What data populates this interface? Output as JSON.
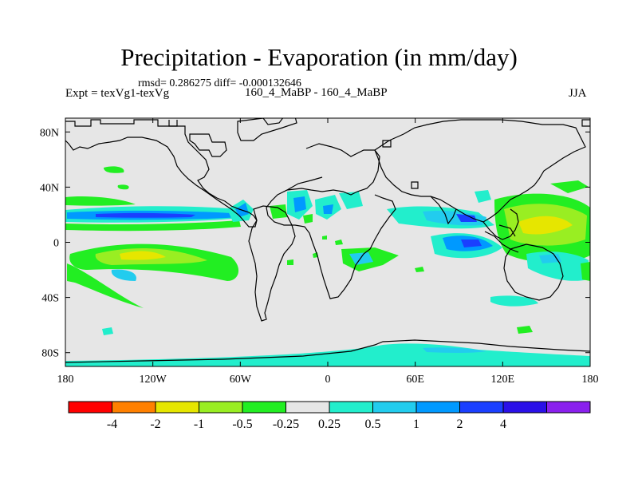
{
  "chart_data": {
    "type": "heatmap",
    "title": "Precipitation - Evaporation (in mm/day)",
    "stats": "rmsd= 0.286275  diff= -0.000132646",
    "left_label": "Expt = texVg1-texVg",
    "center_label": "160_4_MaBP - 160_4_MaBP",
    "right_label": "JJA",
    "x_ticks": [
      "180",
      "120W",
      "60W",
      "0",
      "60E",
      "120E",
      "180"
    ],
    "x_values": [
      -180,
      -120,
      -60,
      0,
      60,
      120,
      180
    ],
    "y_ticks": [
      "80N",
      "40N",
      "0",
      "40S",
      "80S"
    ],
    "y_values": [
      80,
      40,
      0,
      -40,
      -80
    ],
    "xlim": [
      -180,
      180
    ],
    "ylim": [
      -90,
      90
    ],
    "colorbar": {
      "colors": [
        "#ff0000",
        "#ff8000",
        "#e6e600",
        "#99ee22",
        "#22ee22",
        "#e6e6e6",
        "#22eecc",
        "#22ccee",
        "#0099ff",
        "#1a3fff",
        "#2a10e8",
        "#8a20ee"
      ],
      "labels": [
        "-4",
        "-2",
        "-1",
        "-0.5",
        "-0.25",
        "0.25",
        "0.5",
        "1",
        "2",
        "4"
      ]
    }
  }
}
